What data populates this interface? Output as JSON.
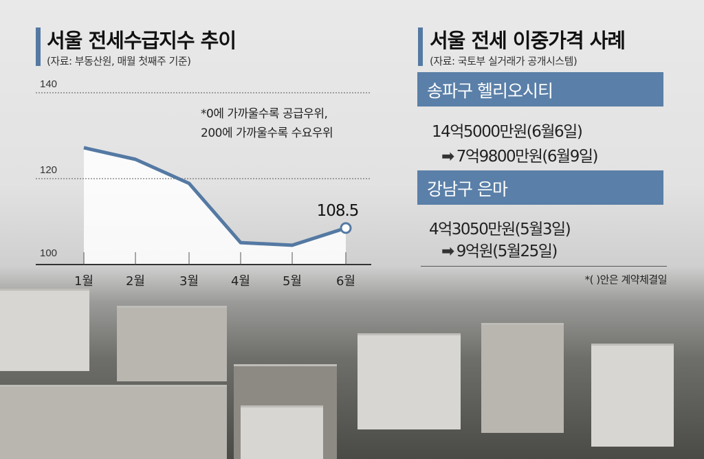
{
  "left": {
    "title": "서울 전세수급지수 추이",
    "source": "(자료: 부동산원, 매월 첫째주 기준)",
    "note_line1": "*0에 가까울수록 공급우위,",
    "note_line2": "200에 가까울수록 수요우위"
  },
  "chart_data": {
    "type": "line",
    "title": "서울 전세수급지수 추이",
    "xlabel": "",
    "ylabel": "",
    "categories": [
      "1월",
      "2월",
      "3월",
      "4월",
      "5월",
      "6월"
    ],
    "series": [
      {
        "name": "서울 전세수급지수",
        "values": [
          127.2,
          124.5,
          118.9,
          105.1,
          104.5,
          108.5
        ]
      }
    ],
    "ylim": [
      100,
      140
    ],
    "yticks": [
      100,
      120,
      140
    ],
    "grid": true,
    "annotation": "108.5",
    "line_color": "#5479a3"
  },
  "right": {
    "title": "서울 전세 이중가격 사례",
    "source": "(자료: 국토부 실거래가 공개시스템)",
    "cases": [
      {
        "name": "송파구 헬리오시티",
        "before": "14억5000만원(6월6일)",
        "after": "7억9800만원(6월9일)"
      },
      {
        "name": "강남구 은마",
        "before": "4억3050만원(5월3일)",
        "after": "9억원(5월25일)"
      }
    ],
    "arrow": "➡",
    "footnote": "*(    )안은 계약체결일"
  },
  "colors": {
    "accent": "#5a7fa8"
  }
}
